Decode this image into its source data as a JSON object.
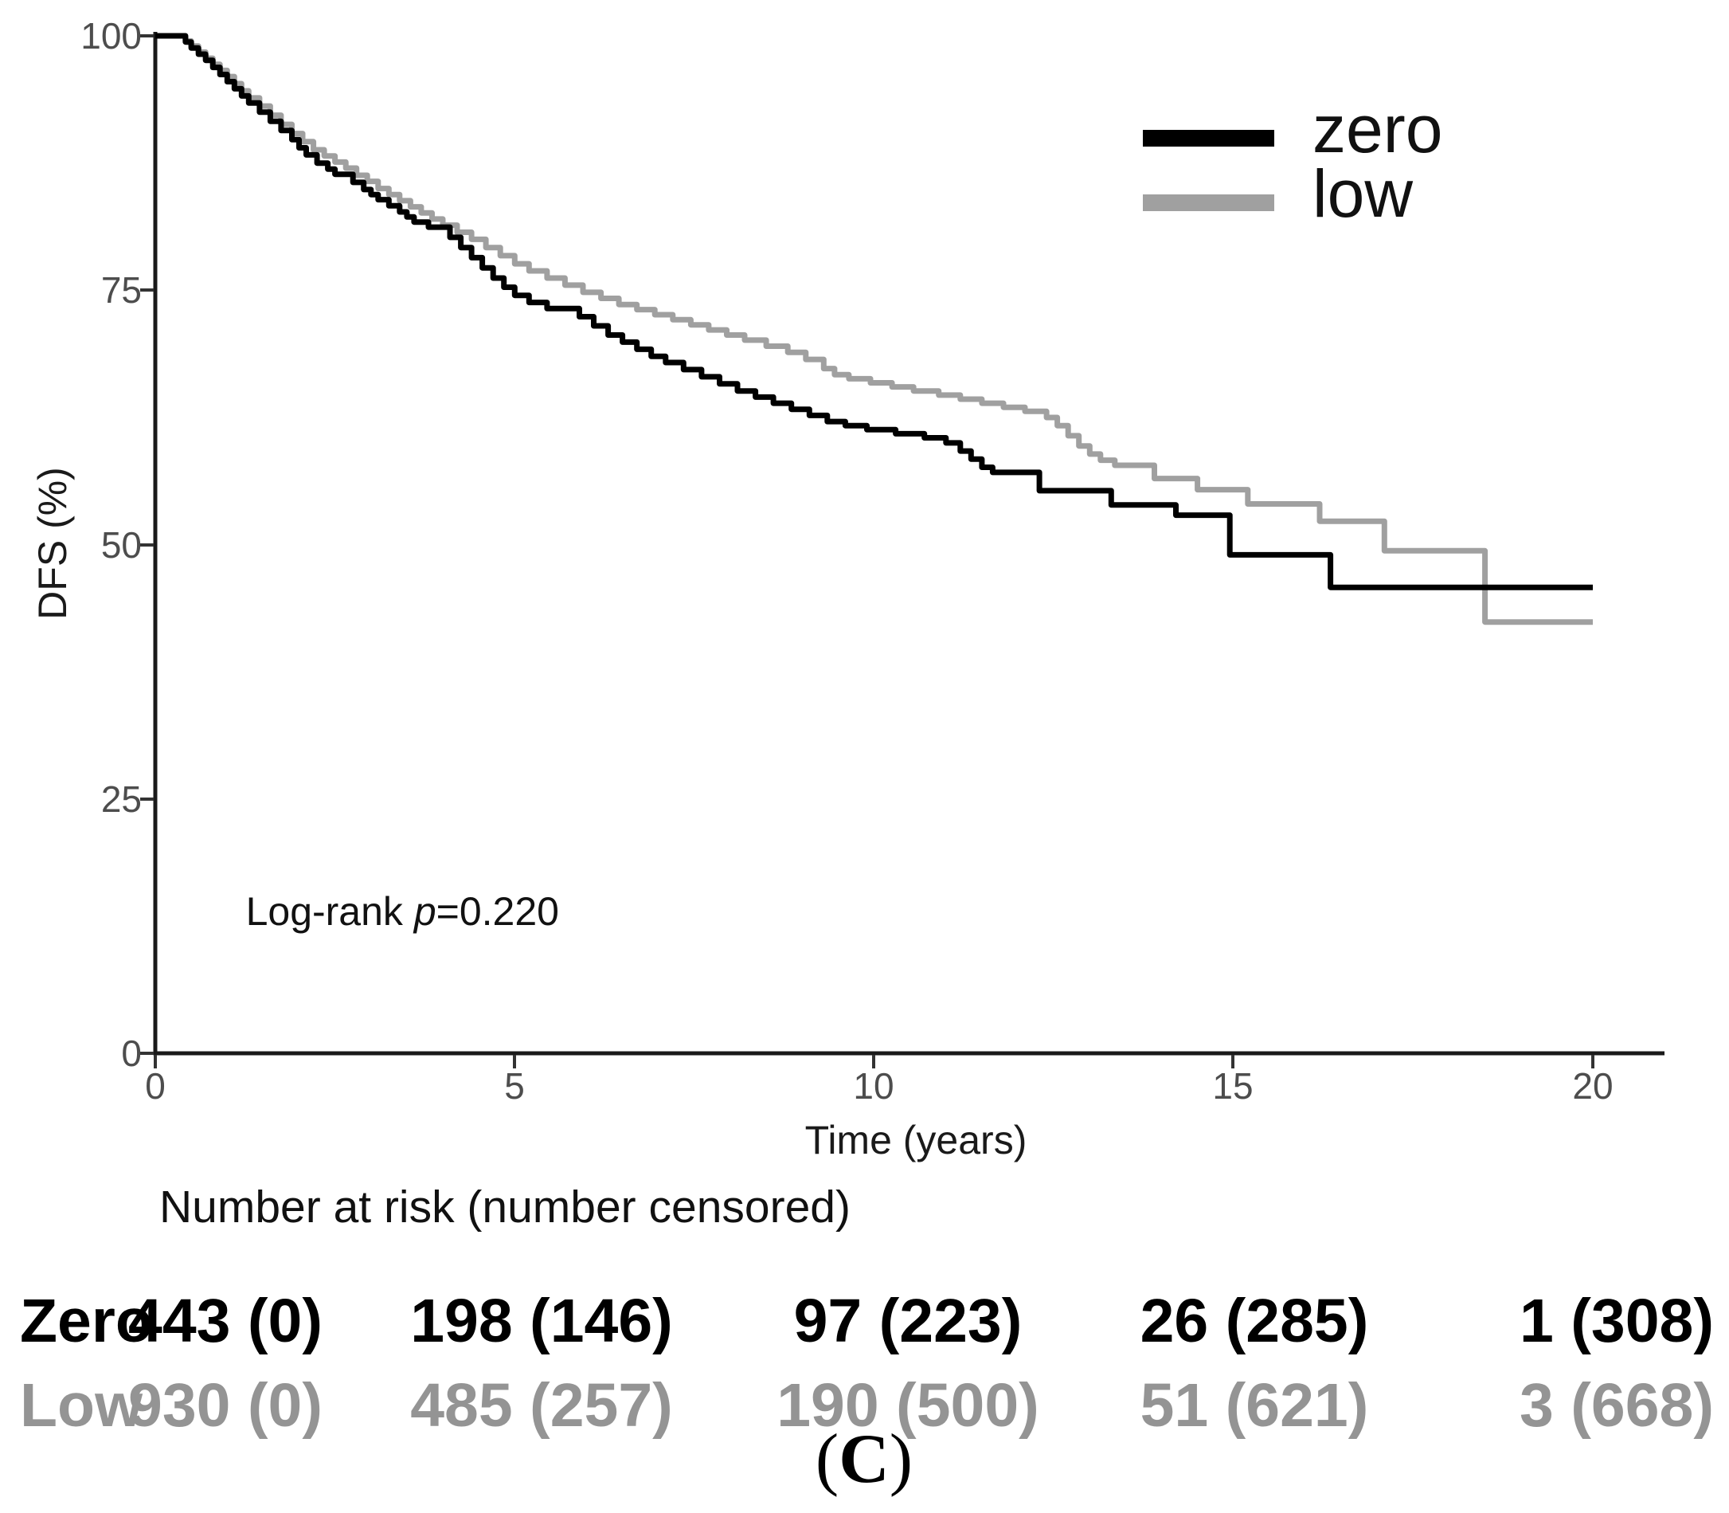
{
  "figure": {
    "axes": {
      "y": {
        "title": "DFS (%)",
        "ticks": [
          {
            "label": "100"
          },
          {
            "label": "75"
          },
          {
            "label": "50"
          },
          {
            "label": "25"
          },
          {
            "label": "0"
          }
        ]
      },
      "x": {
        "title": "Time (years)",
        "ticks": [
          {
            "label": "0"
          },
          {
            "label": "5"
          },
          {
            "label": "10"
          },
          {
            "label": "15"
          },
          {
            "label": "20"
          }
        ]
      }
    },
    "legend": {
      "items": [
        {
          "label": "zero",
          "color": "#000000"
        },
        {
          "label": "low",
          "color": "#a0a0a0"
        }
      ]
    },
    "annotation": {
      "prefix": "Log-rank ",
      "p_symbol": "p",
      "value": "=0.220"
    },
    "risk_table": {
      "header": "Number at risk (number censored)",
      "rows": [
        {
          "label": "Zero",
          "color": "#000000",
          "values": [
            "443 (0)",
            "198 (146)",
            "97 (223)",
            "26 (285)",
            "1 (308)"
          ]
        },
        {
          "label": "Low",
          "color": "#949494",
          "values": [
            "930 (0)",
            "485 (257)",
            "190 (500)",
            "51 (621)",
            "3 (668)"
          ]
        }
      ]
    },
    "caption": {
      "open": "(",
      "letter": "C",
      "close": ")"
    }
  },
  "chart_data": {
    "type": "line",
    "subtype": "kaplan-meier-step",
    "title": "",
    "xlabel": "Time (years)",
    "ylabel": "DFS (%)",
    "xlim": [
      0,
      20
    ],
    "ylim": [
      0,
      100
    ],
    "x_ticks": [
      0,
      5,
      10,
      15,
      20
    ],
    "y_ticks": [
      0,
      25,
      50,
      75,
      100
    ],
    "grid": false,
    "legend_position": "top-right",
    "annotation": "Log-rank p=0.220",
    "series": [
      {
        "name": "zero",
        "color": "#000000",
        "points": [
          [
            0,
            100
          ],
          [
            0.42,
            99.4
          ],
          [
            0.5,
            98.8
          ],
          [
            0.6,
            98.2
          ],
          [
            0.7,
            97.6
          ],
          [
            0.8,
            96.9
          ],
          [
            0.9,
            96.2
          ],
          [
            1.0,
            95.5
          ],
          [
            1.1,
            94.8
          ],
          [
            1.2,
            94.1
          ],
          [
            1.3,
            93.4
          ],
          [
            1.45,
            92.5
          ],
          [
            1.6,
            91.6
          ],
          [
            1.75,
            90.7
          ],
          [
            1.9,
            89.8
          ],
          [
            2.0,
            89.0
          ],
          [
            2.1,
            88.3
          ],
          [
            2.25,
            87.5
          ],
          [
            2.4,
            86.9
          ],
          [
            2.5,
            86.4
          ],
          [
            2.75,
            85.6
          ],
          [
            2.9,
            84.9
          ],
          [
            3.0,
            84.4
          ],
          [
            3.1,
            83.9
          ],
          [
            3.25,
            83.3
          ],
          [
            3.4,
            82.7
          ],
          [
            3.5,
            82.2
          ],
          [
            3.6,
            81.7
          ],
          [
            3.8,
            81.2
          ],
          [
            4.1,
            80.2
          ],
          [
            4.25,
            79.2
          ],
          [
            4.4,
            78.2
          ],
          [
            4.55,
            77.2
          ],
          [
            4.7,
            76.2
          ],
          [
            4.85,
            75.3
          ],
          [
            5.0,
            74.5
          ],
          [
            5.2,
            73.8
          ],
          [
            5.45,
            73.2
          ],
          [
            5.9,
            72.4
          ],
          [
            6.1,
            71.5
          ],
          [
            6.3,
            70.6
          ],
          [
            6.5,
            69.9
          ],
          [
            6.7,
            69.2
          ],
          [
            6.9,
            68.5
          ],
          [
            7.1,
            67.9
          ],
          [
            7.35,
            67.2
          ],
          [
            7.6,
            66.5
          ],
          [
            7.85,
            65.8
          ],
          [
            8.1,
            65.1
          ],
          [
            8.35,
            64.5
          ],
          [
            8.6,
            63.9
          ],
          [
            8.85,
            63.3
          ],
          [
            9.1,
            62.7
          ],
          [
            9.35,
            62.1
          ],
          [
            9.6,
            61.7
          ],
          [
            9.9,
            61.3
          ],
          [
            10.3,
            60.9
          ],
          [
            10.7,
            60.5
          ],
          [
            11.0,
            60.0
          ],
          [
            11.2,
            59.2
          ],
          [
            11.35,
            58.4
          ],
          [
            11.5,
            57.6
          ],
          [
            11.65,
            57.1
          ],
          [
            12.3,
            55.3
          ],
          [
            13.3,
            53.9
          ],
          [
            14.2,
            52.9
          ],
          [
            14.95,
            49.0
          ],
          [
            16.35,
            45.8
          ],
          [
            20,
            45.8
          ]
        ]
      },
      {
        "name": "low",
        "color": "#a0a0a0",
        "points": [
          [
            0,
            100
          ],
          [
            0.42,
            99.5
          ],
          [
            0.5,
            99.0
          ],
          [
            0.6,
            98.4
          ],
          [
            0.7,
            97.8
          ],
          [
            0.8,
            97.2
          ],
          [
            0.9,
            96.6
          ],
          [
            1.0,
            96.0
          ],
          [
            1.1,
            95.3
          ],
          [
            1.2,
            94.6
          ],
          [
            1.3,
            93.9
          ],
          [
            1.45,
            93.1
          ],
          [
            1.6,
            92.2
          ],
          [
            1.75,
            91.3
          ],
          [
            1.9,
            90.4
          ],
          [
            2.05,
            89.6
          ],
          [
            2.2,
            88.8
          ],
          [
            2.35,
            88.2
          ],
          [
            2.5,
            87.6
          ],
          [
            2.65,
            87.0
          ],
          [
            2.8,
            86.3
          ],
          [
            2.95,
            85.7
          ],
          [
            3.1,
            85.0
          ],
          [
            3.25,
            84.4
          ],
          [
            3.4,
            83.8
          ],
          [
            3.55,
            83.2
          ],
          [
            3.7,
            82.6
          ],
          [
            3.85,
            82.0
          ],
          [
            4.0,
            81.4
          ],
          [
            4.2,
            80.7
          ],
          [
            4.4,
            80.0
          ],
          [
            4.6,
            79.2
          ],
          [
            4.8,
            78.4
          ],
          [
            5.0,
            77.6
          ],
          [
            5.2,
            76.9
          ],
          [
            5.45,
            76.2
          ],
          [
            5.7,
            75.5
          ],
          [
            5.95,
            74.8
          ],
          [
            6.2,
            74.2
          ],
          [
            6.45,
            73.6
          ],
          [
            6.7,
            73.1
          ],
          [
            6.95,
            72.6
          ],
          [
            7.2,
            72.1
          ],
          [
            7.45,
            71.6
          ],
          [
            7.7,
            71.1
          ],
          [
            7.95,
            70.6
          ],
          [
            8.2,
            70.1
          ],
          [
            8.5,
            69.5
          ],
          [
            8.8,
            68.9
          ],
          [
            9.05,
            68.2
          ],
          [
            9.3,
            67.3
          ],
          [
            9.45,
            66.7
          ],
          [
            9.65,
            66.3
          ],
          [
            9.95,
            65.9
          ],
          [
            10.25,
            65.5
          ],
          [
            10.55,
            65.1
          ],
          [
            10.9,
            64.7
          ],
          [
            11.2,
            64.3
          ],
          [
            11.5,
            63.9
          ],
          [
            11.8,
            63.5
          ],
          [
            12.1,
            63.1
          ],
          [
            12.4,
            62.5
          ],
          [
            12.55,
            61.7
          ],
          [
            12.7,
            60.7
          ],
          [
            12.85,
            59.7
          ],
          [
            13.0,
            58.9
          ],
          [
            13.15,
            58.3
          ],
          [
            13.35,
            57.8
          ],
          [
            13.9,
            56.5
          ],
          [
            14.5,
            55.4
          ],
          [
            15.2,
            54.0
          ],
          [
            16.2,
            52.3
          ],
          [
            17.1,
            49.4
          ],
          [
            18.5,
            42.4
          ],
          [
            20,
            42.4
          ]
        ]
      }
    ],
    "number_at_risk": {
      "times": [
        0,
        5,
        10,
        15,
        20
      ],
      "zero": {
        "at_risk": [
          443,
          198,
          97,
          26,
          1
        ],
        "censored": [
          0,
          146,
          223,
          285,
          308
        ]
      },
      "low": {
        "at_risk": [
          930,
          485,
          190,
          51,
          3
        ],
        "censored": [
          0,
          257,
          500,
          621,
          668
        ]
      }
    }
  }
}
